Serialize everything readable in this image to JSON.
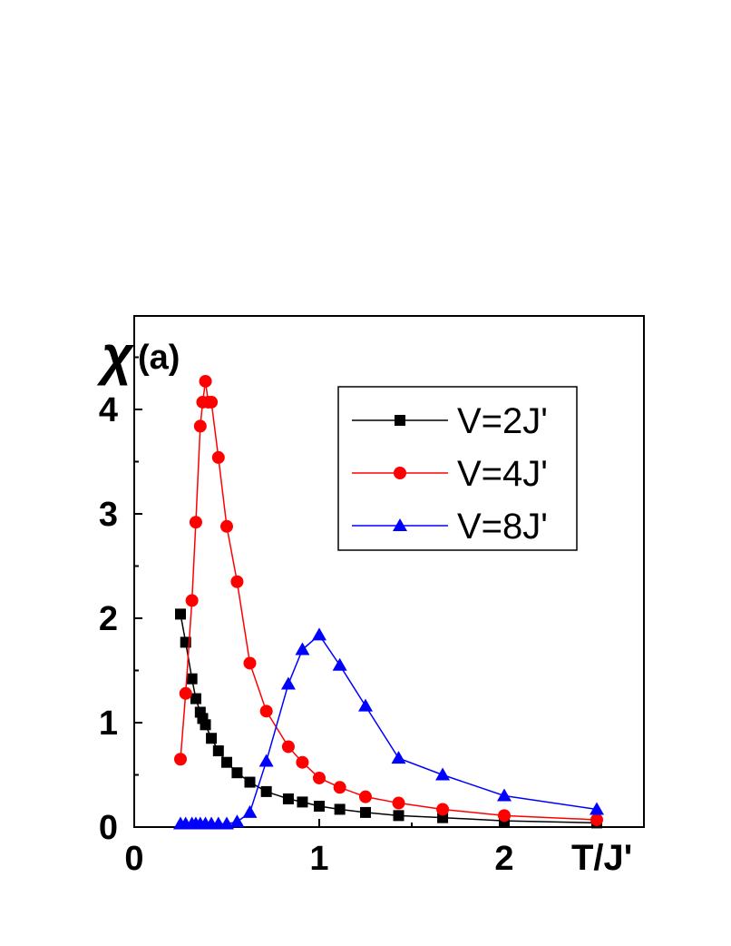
{
  "chart_data": {
    "type": "line",
    "title": "",
    "panel_label": "(a)",
    "xlabel": "T/J'",
    "ylabel": "χ",
    "xlim": [
      0,
      2.5
    ],
    "ylim": [
      0,
      4.8
    ],
    "x_ticks": [
      0,
      1,
      2
    ],
    "y_ticks": [
      0,
      1,
      2,
      3,
      4
    ],
    "grid": false,
    "legend": {
      "placement": "top-right"
    },
    "series": [
      {
        "name": "V=2J'",
        "color": "#000000",
        "marker": "square",
        "x": [
          0.25,
          0.278,
          0.312,
          0.333,
          0.357,
          0.37,
          0.385,
          0.417,
          0.455,
          0.5,
          0.556,
          0.625,
          0.714,
          0.833,
          0.909,
          1.0,
          1.111,
          1.25,
          1.429,
          1.667,
          2.0,
          2.5
        ],
        "y": [
          2.04,
          1.77,
          1.42,
          1.23,
          1.1,
          1.04,
          0.98,
          0.85,
          0.73,
          0.62,
          0.52,
          0.43,
          0.34,
          0.27,
          0.24,
          0.2,
          0.17,
          0.14,
          0.11,
          0.09,
          0.06,
          0.04
        ]
      },
      {
        "name": "V=4J'",
        "color": "#ff0000",
        "marker": "circle",
        "x": [
          0.25,
          0.278,
          0.312,
          0.333,
          0.357,
          0.37,
          0.385,
          0.4,
          0.417,
          0.455,
          0.5,
          0.556,
          0.625,
          0.714,
          0.833,
          0.909,
          1.0,
          1.111,
          1.25,
          1.429,
          1.667,
          2.0,
          2.5
        ],
        "y": [
          0.65,
          1.28,
          2.17,
          2.92,
          3.84,
          4.07,
          4.27,
          4.07,
          4.07,
          3.54,
          2.88,
          2.35,
          1.57,
          1.11,
          0.77,
          0.62,
          0.47,
          0.38,
          0.29,
          0.23,
          0.17,
          0.11,
          0.07
        ]
      },
      {
        "name": "V=8J'",
        "color": "#0000ff",
        "marker": "triangle",
        "x": [
          0.25,
          0.278,
          0.312,
          0.333,
          0.357,
          0.385,
          0.417,
          0.455,
          0.5,
          0.556,
          0.625,
          0.714,
          0.833,
          0.909,
          1.0,
          1.111,
          1.25,
          1.429,
          1.667,
          2.0,
          2.5
        ],
        "y": [
          0.03,
          0.03,
          0.03,
          0.03,
          0.03,
          0.03,
          0.03,
          0.03,
          0.03,
          0.05,
          0.14,
          0.63,
          1.37,
          1.7,
          1.84,
          1.55,
          1.16,
          0.66,
          0.5,
          0.3,
          0.17
        ]
      }
    ]
  }
}
